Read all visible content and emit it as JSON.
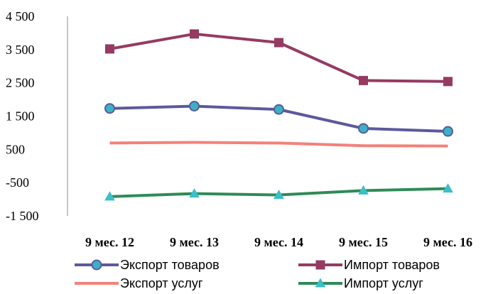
{
  "chart_data": {
    "type": "line",
    "categories": [
      "9 мес. 12",
      "9 мес. 13",
      "9 мес. 14",
      "9 мес. 15",
      "9 мес. 16"
    ],
    "ylim": [
      -1500,
      4500
    ],
    "yticks": [
      -1500,
      -500,
      500,
      1500,
      2500,
      3500,
      4500
    ],
    "ytick_labels": [
      "-1 500",
      "-500",
      "500",
      "1 500",
      "2 500",
      "3 500",
      "4 500"
    ],
    "grid": false,
    "legend_position": "bottom",
    "series": [
      {
        "name": "Экспорт товаров",
        "values": [
          1730,
          1800,
          1700,
          1130,
          1040
        ],
        "color": "#5B5A9E",
        "marker": "circle",
        "marker_fill": "#3BB2C4"
      },
      {
        "name": "Импорт товаров",
        "values": [
          3520,
          3970,
          3710,
          2570,
          2540
        ],
        "color": "#953A63",
        "marker": "square",
        "marker_fill": "#953A63"
      },
      {
        "name": "Экспорт услуг",
        "values": [
          690,
          710,
          690,
          610,
          600
        ],
        "color": "#F4817A",
        "marker": "none",
        "marker_fill": ""
      },
      {
        "name": "Импорт услуг",
        "values": [
          -920,
          -830,
          -870,
          -740,
          -680
        ],
        "color": "#2E8B57",
        "marker": "triangle",
        "marker_fill": "#3BBFC8"
      }
    ]
  }
}
